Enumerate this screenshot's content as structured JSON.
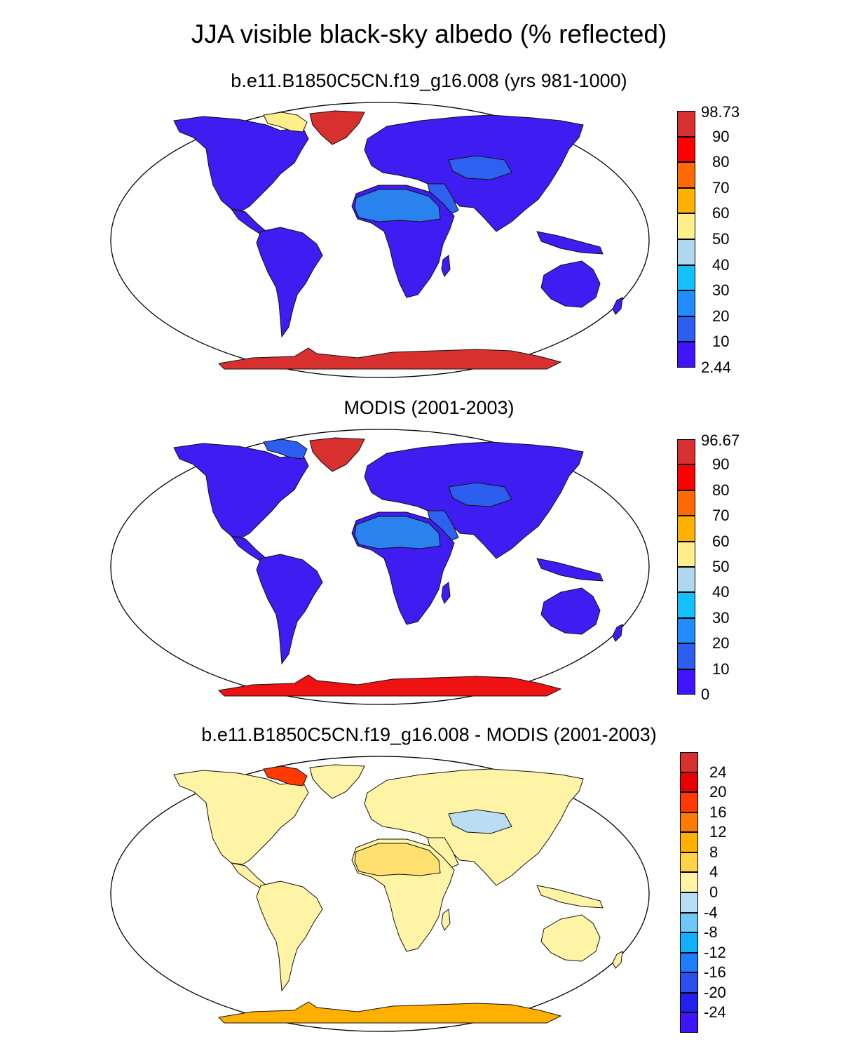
{
  "title": "JJA visible black-sky albedo (% reflected)",
  "panels": [
    {
      "id": "model",
      "title": "b.e11.B1850C5CN.f19_g16.008 (yrs 981-1000)",
      "colorbar": {
        "labels": [
          "98.73",
          "90",
          "80",
          "70",
          "60",
          "50",
          "40",
          "30",
          "20",
          "10",
          "2.44"
        ],
        "colors": [
          "#d7302f",
          "#fe0000",
          "#ff6a00",
          "#ffb000",
          "#ffef8a",
          "#add8f0",
          "#12c1fc",
          "#1f8cff",
          "#2c5eef",
          "#4014ff"
        ]
      },
      "fills": {
        "land": "#3f1cf2",
        "sahara": "#2a82ef",
        "mideast": "#2c62ef",
        "greenland": "#d7302f",
        "antarctica": "#d7302f",
        "arctic": "#ffef8a",
        "tibet": "#2c62ef"
      }
    },
    {
      "id": "modis",
      "title": "MODIS (2001-2003)",
      "colorbar": {
        "labels": [
          "96.67",
          "90",
          "80",
          "70",
          "60",
          "50",
          "40",
          "30",
          "20",
          "10",
          "0"
        ],
        "colors": [
          "#d7302f",
          "#fe0000",
          "#ff6a00",
          "#ffb000",
          "#ffef8a",
          "#add8f0",
          "#12c1fc",
          "#1f8cff",
          "#2c5eef",
          "#4014ff"
        ]
      },
      "fills": {
        "land": "#3f1cf2",
        "sahara": "#2a82ef",
        "mideast": "#2c62ef",
        "greenland": "#d7302f",
        "antarctica": "#f01212",
        "arctic": "#2c5eef",
        "tibet": "#2c5eef"
      }
    },
    {
      "id": "diff",
      "title": "b.e11.B1850C5CN.f19_g16.008 - MODIS (2001-2003)",
      "colorbar": {
        "labels": [
          "24",
          "20",
          "16",
          "12",
          "8",
          "4",
          "0",
          "-4",
          "-8",
          "-12",
          "-16",
          "-20",
          "-24"
        ],
        "colors": [
          "#d7302f",
          "#e80000",
          "#ff3a00",
          "#ff7a00",
          "#ffb000",
          "#ffd24a",
          "#fff3a6",
          "#b9ddf2",
          "#6fc7f6",
          "#12b0fc",
          "#1f7cff",
          "#2c50ef",
          "#2020f0",
          "#4014ff"
        ]
      },
      "fills": {
        "land": "#fff3a6",
        "sahara": "#ffe070",
        "mideast": "#fff3a6",
        "greenland": "#fff3a6",
        "antarctica": "#ffb000",
        "arctic": "#ff3a00",
        "tibet": "#b9ddf2"
      }
    }
  ]
}
